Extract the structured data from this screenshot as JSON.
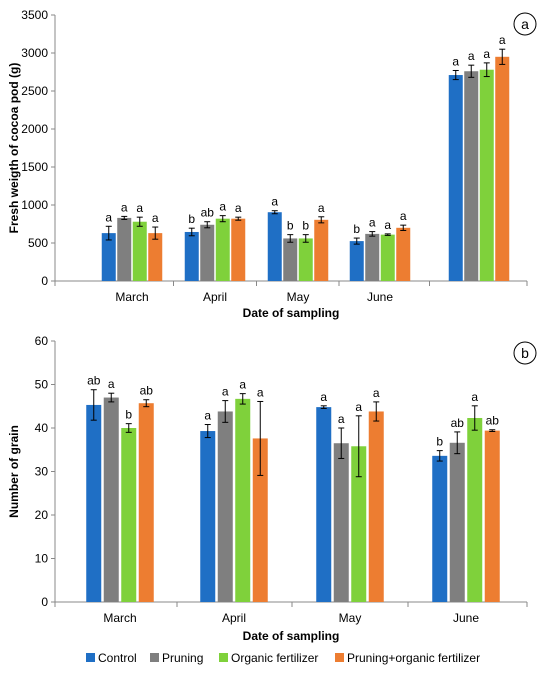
{
  "legend": [
    {
      "name": "Control",
      "color": "#1f6fc5"
    },
    {
      "name": "Pruning",
      "color": "#7f7f7f"
    },
    {
      "name": "Organic fertilizer",
      "color": "#7fd13b"
    },
    {
      "name": "Pruning+organic fertilizer",
      "color": "#ed7d31"
    }
  ],
  "chart_data": [
    {
      "type": "bar",
      "panel_label": "a",
      "ylabel": "Fresh weigth of cocoa pod (g)",
      "xlabel": "Date of sampling",
      "ylim": [
        0,
        3500
      ],
      "yticks": [
        "0",
        "500",
        "1000",
        "1500",
        "2000",
        "2500",
        "3000",
        "3500"
      ],
      "categories": [
        "March",
        "April",
        "May",
        "June",
        ""
      ],
      "series": [
        {
          "name": "Control",
          "values": [
            630,
            645,
            905,
            525,
            2710
          ],
          "errors": [
            90,
            50,
            20,
            40,
            60
          ],
          "letters": [
            "a",
            "b",
            "a",
            "b",
            "a"
          ]
        },
        {
          "name": "Pruning",
          "values": [
            830,
            740,
            560,
            620,
            2760
          ],
          "errors": [
            20,
            40,
            50,
            30,
            80
          ],
          "letters": [
            "a",
            "ab",
            "b",
            "a",
            "a"
          ]
        },
        {
          "name": "Organic fertilizer",
          "values": [
            780,
            820,
            560,
            610,
            2780
          ],
          "errors": [
            60,
            40,
            50,
            10,
            90
          ],
          "letters": [
            "a",
            "a",
            "b",
            "a",
            "a"
          ]
        },
        {
          "name": "Pruning+organic fertilizer",
          "values": [
            630,
            820,
            805,
            700,
            2950
          ],
          "errors": [
            80,
            20,
            40,
            35,
            100
          ],
          "letters": [
            "a",
            "a",
            "a",
            "a",
            "a"
          ]
        }
      ]
    },
    {
      "type": "bar",
      "panel_label": "b",
      "ylabel": "Number of grain",
      "xlabel": "Date of sampling",
      "ylim": [
        0,
        60
      ],
      "yticks": [
        "0",
        "10",
        "20",
        "30",
        "40",
        "50",
        "60"
      ],
      "categories": [
        "March",
        "April",
        "May",
        "June"
      ],
      "series": [
        {
          "name": "Control",
          "values": [
            45.3,
            39.3,
            44.8,
            33.6
          ],
          "errors": [
            3.5,
            1.5,
            0.3,
            1.2
          ],
          "letters": [
            "ab",
            "a",
            "a",
            "b"
          ]
        },
        {
          "name": "Pruning",
          "values": [
            47.0,
            43.8,
            36.5,
            36.6
          ],
          "errors": [
            1.0,
            2.5,
            3.5,
            2.5
          ],
          "letters": [
            "a",
            "a",
            "a",
            "ab"
          ]
        },
        {
          "name": "Organic fertilizer",
          "values": [
            40.0,
            46.7,
            35.8,
            42.3
          ],
          "errors": [
            1.0,
            1.2,
            7.0,
            2.8
          ],
          "letters": [
            "b",
            "a",
            "a",
            "a"
          ]
        },
        {
          "name": "Pruning+organic fertilizer",
          "values": [
            45.7,
            37.6,
            43.8,
            39.4
          ],
          "errors": [
            0.8,
            8.5,
            2.2,
            0.2
          ],
          "letters": [
            "ab",
            "a",
            "a",
            "ab"
          ]
        }
      ]
    }
  ]
}
